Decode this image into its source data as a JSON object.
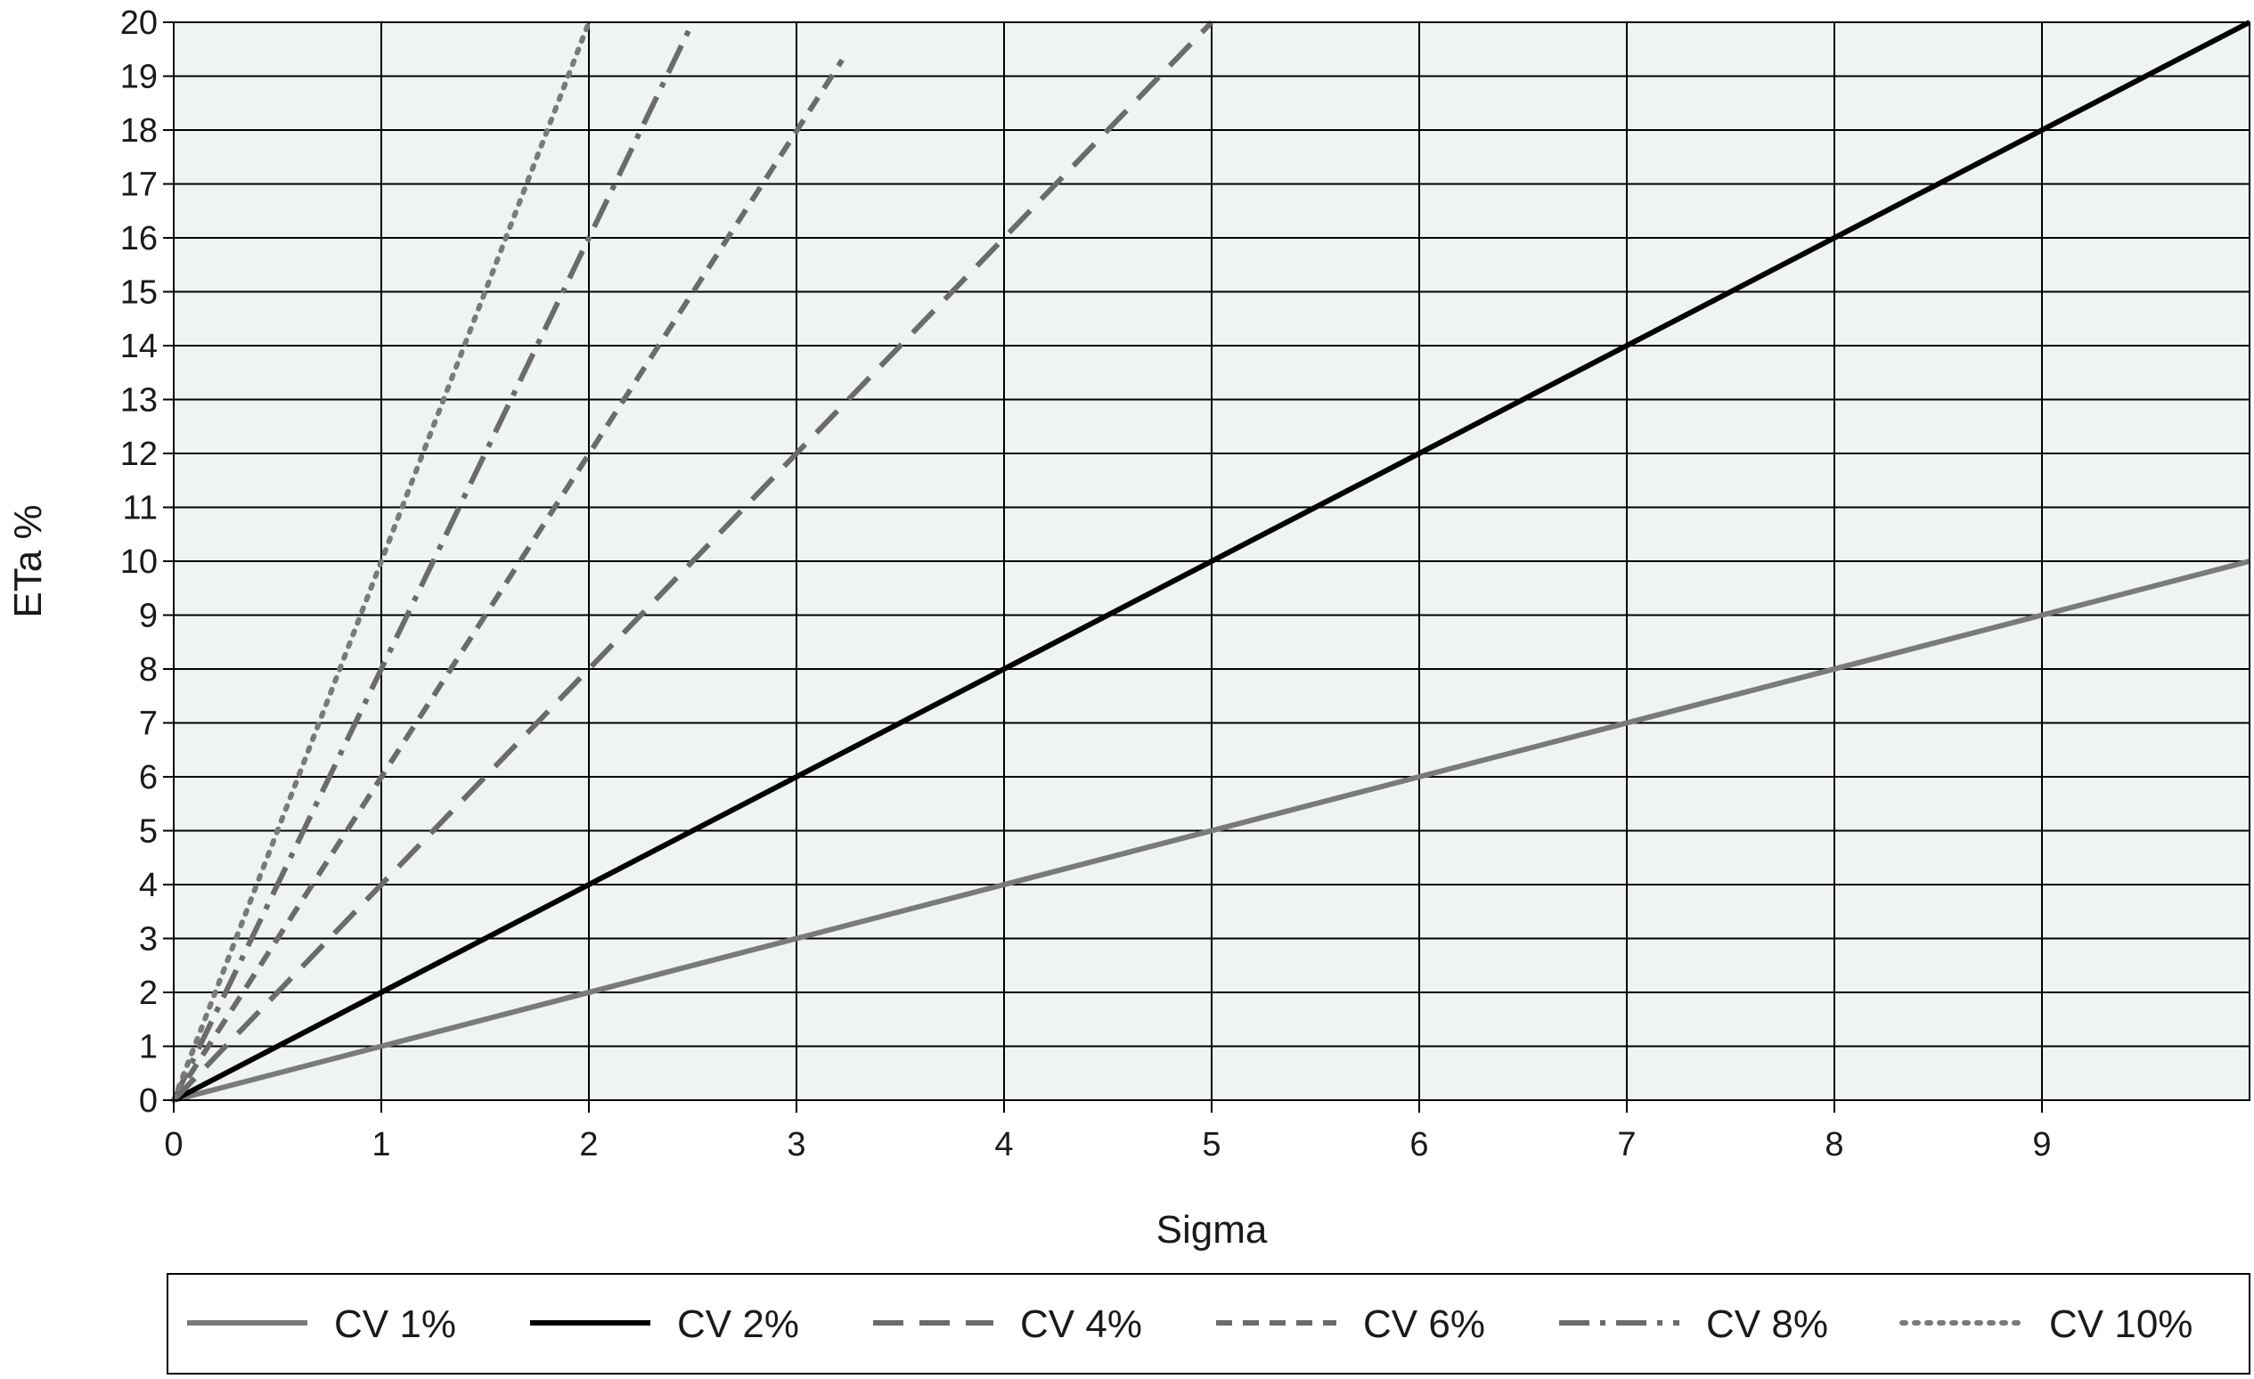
{
  "chart_data": {
    "type": "line",
    "title": "",
    "xlabel": "Sigma",
    "ylabel": "ETa %",
    "xlim": [
      0,
      10
    ],
    "ylim": [
      0,
      20
    ],
    "x_ticks": [
      "0",
      "1",
      "2",
      "3",
      "4",
      "5",
      "6",
      "7",
      "8",
      "9"
    ],
    "y_ticks": [
      "0",
      "1",
      "2",
      "3",
      "4",
      "5",
      "6",
      "7",
      "8",
      "9",
      "10",
      "11",
      "12",
      "13",
      "14",
      "15",
      "16",
      "17",
      "18",
      "19",
      "20"
    ],
    "grid": true,
    "legend_position": "bottom",
    "plot_background": "#eff3f3",
    "series": [
      {
        "name": "CV 1%",
        "color": "#7a7a7a",
        "style": "solid",
        "x": [
          0,
          10
        ],
        "y": [
          0,
          10
        ]
      },
      {
        "name": "CV 2%",
        "color": "#000000",
        "style": "solid",
        "x": [
          0,
          10
        ],
        "y": [
          0,
          20
        ]
      },
      {
        "name": "CV 4%",
        "color": "#6b6b6b",
        "style": "long-dash",
        "x": [
          0,
          5
        ],
        "y": [
          0,
          20
        ]
      },
      {
        "name": "CV 6%",
        "color": "#6b6b6b",
        "style": "short-dash",
        "x": [
          0,
          3.22
        ],
        "y": [
          0,
          19.3
        ]
      },
      {
        "name": "CV 8%",
        "color": "#6b6b6b",
        "style": "dash-dot",
        "x": [
          0,
          2.5
        ],
        "y": [
          0,
          20
        ]
      },
      {
        "name": "CV 10%",
        "color": "#7a7a7a",
        "style": "dotted",
        "x": [
          0,
          2
        ],
        "y": [
          0,
          20
        ]
      }
    ]
  }
}
